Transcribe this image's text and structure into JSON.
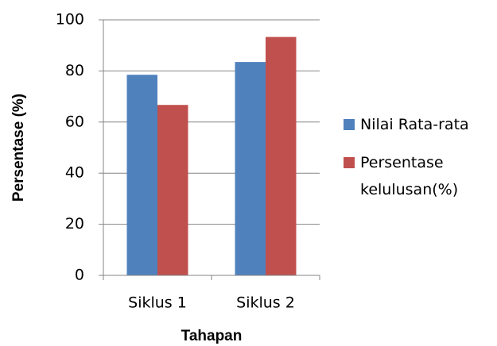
{
  "chart_data": {
    "type": "bar",
    "x_label": "Tahapan",
    "y_label": "Persentase (%)",
    "categories": [
      "Siklus 1",
      "Siklus 2"
    ],
    "series": [
      {
        "name": "Nilai Rata-rata",
        "color": "#4f81bd",
        "values": [
          78.5,
          83.5
        ]
      },
      {
        "name": "Persentase kelulusan(%)",
        "color": "#c0504d",
        "values": [
          66.7,
          93.3
        ]
      }
    ],
    "ylim": [
      0,
      100
    ],
    "yticks": [
      0,
      20,
      40,
      60,
      80,
      100
    ],
    "grid": true,
    "legend": "right"
  }
}
